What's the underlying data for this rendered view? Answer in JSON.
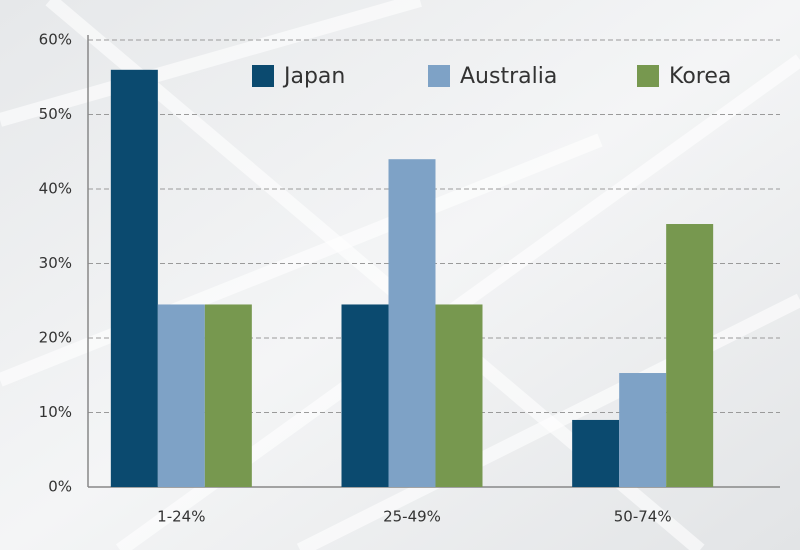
{
  "chart_data": {
    "type": "bar",
    "categories": [
      "1-24%",
      "25-49%",
      "50-74%"
    ],
    "series": [
      {
        "name": "Japan",
        "color": "#0b4a6f",
        "values": [
          56,
          24.5,
          9
        ]
      },
      {
        "name": "Australia",
        "color": "#7ea2c6",
        "values": [
          24.5,
          44,
          15.3
        ]
      },
      {
        "name": "Korea",
        "color": "#77984f",
        "values": [
          24.5,
          24.5,
          35.3
        ]
      }
    ],
    "ylim": [
      0,
      60
    ],
    "yticks": [
      {
        "value": 0,
        "label": "0%"
      },
      {
        "value": 10,
        "label": "10%"
      },
      {
        "value": 20,
        "label": "20%"
      },
      {
        "value": 30,
        "label": "30%"
      },
      {
        "value": 40,
        "label": "40%"
      },
      {
        "value": 50,
        "label": "50%"
      },
      {
        "value": 60,
        "label": "60%"
      }
    ],
    "grid": true,
    "legend": "top"
  }
}
